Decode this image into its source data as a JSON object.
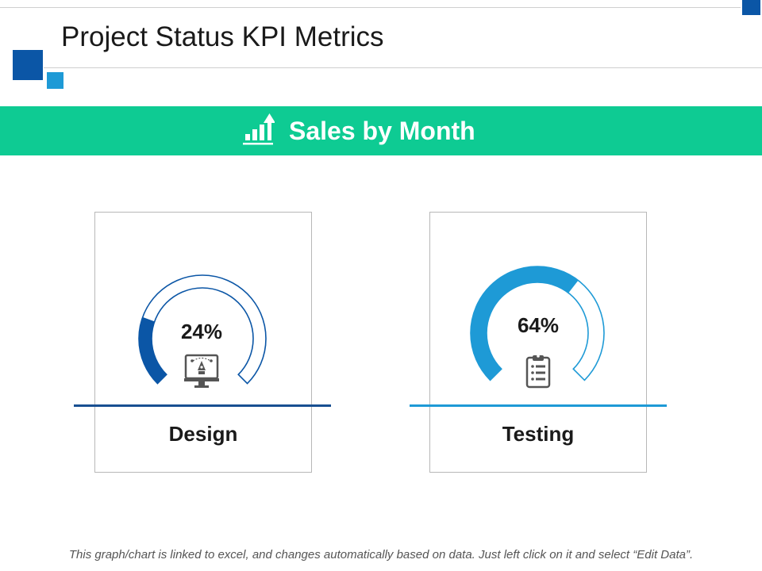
{
  "page": {
    "title": "Project Status KPI Metrics",
    "banner_title": "Sales by Month",
    "footer_note": "This graph/chart is linked to excel, and changes automatically based on data. Just left click on it and select “Edit Data”."
  },
  "colors": {
    "banner": "#0ecb93",
    "design_accent": "#0b56a6",
    "testing_accent": "#1e9ad6"
  },
  "icons": {
    "banner": "bar-chart-up-icon",
    "design": "monitor-pen-tool-icon",
    "testing": "clipboard-checklist-icon"
  },
  "chart_data": [
    {
      "type": "gauge",
      "category": "Design",
      "value": 24,
      "value_label": "24%",
      "max": 100
    },
    {
      "type": "gauge",
      "category": "Testing",
      "value": 64,
      "value_label": "64%",
      "max": 100
    }
  ]
}
